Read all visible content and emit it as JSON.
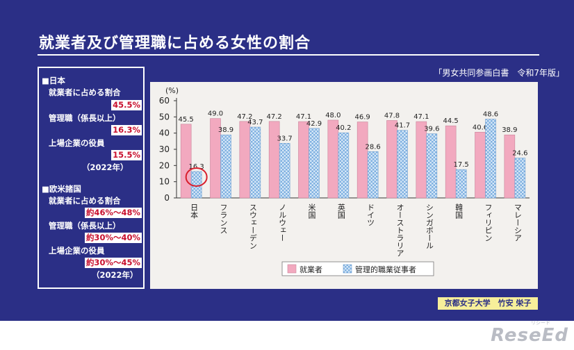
{
  "title": "就業者及び管理職に占める女性の割合",
  "source": "「男女共同参画白書　令和7年版」",
  "credit": "京都女子大学　竹安 栄子",
  "logo": "ReseEd",
  "logo_small": "リシード",
  "left_panel": {
    "japan": {
      "heading": "■日本",
      "items": [
        {
          "label": "就業者に占める割合",
          "value": "45.5%"
        },
        {
          "label": "管理職（係長以上）",
          "value": "16.3%"
        },
        {
          "label": "上場企業の役員",
          "value": "15.5%"
        }
      ],
      "year": "（2022年）"
    },
    "western": {
      "heading": "■欧米諸国",
      "items": [
        {
          "label": "就業者に占める割合",
          "value": "約46%～48%"
        },
        {
          "label": "管理職（係長以上）",
          "value": "約30%～40%"
        },
        {
          "label": "上場企業の役員",
          "value": "約30%～45%"
        }
      ],
      "year": "（2022年）"
    }
  },
  "chart_data": {
    "type": "bar",
    "ylabel": "(%)",
    "ylim": [
      0,
      60
    ],
    "yticks": [
      0,
      10,
      20,
      30,
      40,
      50,
      60
    ],
    "categories": [
      "日本",
      "フランス",
      "スウェーデン",
      "ノルウェー",
      "米国",
      "英国",
      "ドイツ",
      "オーストラリア",
      "シンガポール",
      "韓国",
      "フィリピン",
      "マレーシア"
    ],
    "series": [
      {
        "name": "就業者",
        "color": "#f2a9bf",
        "values": [
          45.5,
          49.0,
          47.2,
          47.2,
          47.1,
          48.0,
          46.9,
          47.8,
          47.1,
          44.5,
          40.6,
          38.9
        ],
        "labels": [
          "45.5",
          "49.0",
          "47.2",
          "47.2",
          "47.1",
          "48.0",
          "46.9",
          "47.8",
          "47.1",
          "44.5",
          "40.6",
          "38.9"
        ]
      },
      {
        "name": "管理的職業従事者",
        "color": "#9ec4ea",
        "values": [
          16.3,
          38.9,
          43.7,
          33.7,
          42.9,
          40.2,
          28.6,
          41.7,
          39.6,
          17.5,
          48.6,
          24.6
        ],
        "labels": [
          "16.3",
          "38.9",
          "43.7",
          "33.7",
          "42.9",
          "40.2",
          "28.6",
          "41.7",
          "39.6",
          "17.5",
          "48.6",
          "24.6"
        ]
      }
    ],
    "highlight": {
      "category_index": 0,
      "series_index": 1,
      "color": "#d81e2c"
    },
    "legend": "bottom-center",
    "grid": false
  }
}
